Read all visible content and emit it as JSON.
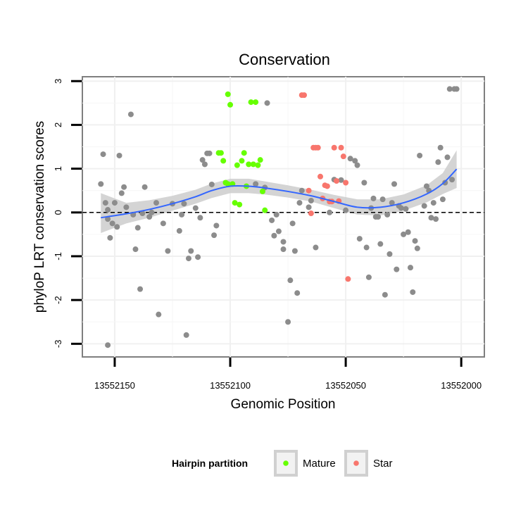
{
  "chart_data": {
    "type": "scatter",
    "title": "Conservation",
    "xlabel": "Genomic Position",
    "ylabel": "phyloP LRT conservation scores",
    "x_reversed": true,
    "xlim": [
      13552164,
      13551990
    ],
    "ylim": [
      -3.3,
      3.1
    ],
    "x_ticks": [
      13552150,
      13552100,
      13552050,
      13552000
    ],
    "x_tick_labels": [
      "13552150",
      "13552100",
      "13552050",
      "13552000"
    ],
    "y_ticks": [
      -3,
      -2,
      -1,
      0,
      1,
      2,
      3
    ],
    "y_tick_labels": [
      "-3",
      "-2",
      "-1",
      "0",
      "1",
      "2",
      "3"
    ],
    "grid": true,
    "reference_line": {
      "y": 0,
      "style": "dashed"
    },
    "legend": {
      "title": "Hairpin partition",
      "position": "bottom",
      "entries": [
        {
          "name": "Mature",
          "color": "#66ff00"
        },
        {
          "name": "Star",
          "color": "#f8766d"
        }
      ]
    },
    "colors": {
      "other": "#8c8c8c",
      "Mature": "#66ff00",
      "Star": "#f8766d",
      "smooth": "#3366ff",
      "ribbon": "#cccccc"
    },
    "series": [
      {
        "name": "",
        "group": "other",
        "points": [
          [
            13552156,
            0.65
          ],
          [
            13552155,
            1.33
          ],
          [
            13552154,
            0.22
          ],
          [
            13552153,
            0.06
          ],
          [
            13552153,
            -0.15
          ],
          [
            13552152,
            -0.58
          ],
          [
            13552151,
            -0.25
          ],
          [
            13552150,
            0.22
          ],
          [
            13552149,
            -0.33
          ],
          [
            13552148,
            1.3
          ],
          [
            13552147,
            0.44
          ],
          [
            13552146,
            0.58
          ],
          [
            13552145,
            0.12
          ],
          [
            13552143,
            2.24
          ],
          [
            13552142,
            -0.05
          ],
          [
            13552141,
            -0.84
          ],
          [
            13552140,
            -0.35
          ],
          [
            13552139,
            -1.75
          ],
          [
            13552138,
            -0.02
          ],
          [
            13552137,
            0.58
          ],
          [
            13552135,
            -0.1
          ],
          [
            13552134,
            0.0
          ],
          [
            13552132,
            0.22
          ],
          [
            13552131,
            -2.33
          ],
          [
            13552129,
            -0.25
          ],
          [
            13552127,
            -0.88
          ],
          [
            13552125,
            0.2
          ],
          [
            13552122,
            -0.42
          ],
          [
            13552121,
            -0.05
          ],
          [
            13552120,
            0.2
          ],
          [
            13552119,
            -2.8
          ],
          [
            13552118,
            -1.05
          ],
          [
            13552117,
            -0.88
          ],
          [
            13552115,
            0.1
          ],
          [
            13552114,
            -1.02
          ],
          [
            13552113,
            -0.12
          ],
          [
            13552112,
            1.2
          ],
          [
            13552111,
            1.1
          ],
          [
            13552110,
            1.35
          ],
          [
            13552109,
            1.35
          ],
          [
            13552108,
            0.64
          ],
          [
            13552107,
            -0.52
          ],
          [
            13552106,
            -0.3
          ],
          [
            13552153,
            -3.03
          ],
          [
            13552089,
            0.65
          ],
          [
            13552085,
            0.57
          ],
          [
            13552084,
            2.5
          ],
          [
            13552082,
            -0.18
          ],
          [
            13552081,
            -0.53
          ],
          [
            13552080,
            -0.05
          ],
          [
            13552079,
            -0.43
          ],
          [
            13552077,
            -0.67
          ],
          [
            13552077,
            -0.84
          ],
          [
            13552075,
            -2.5
          ],
          [
            13552074,
            -1.55
          ],
          [
            13552073,
            -0.25
          ],
          [
            13552072,
            -0.88
          ],
          [
            13552071,
            -1.84
          ],
          [
            13552070,
            0.22
          ],
          [
            13552069,
            0.5
          ],
          [
            13552066,
            0.12
          ],
          [
            13552065,
            0.27
          ],
          [
            13552063,
            -0.8
          ],
          [
            13552057,
            0.0
          ],
          [
            13552055,
            0.75
          ],
          [
            13552052,
            0.74
          ],
          [
            13552050,
            0.05
          ],
          [
            13552048,
            1.23
          ],
          [
            13552046,
            1.18
          ],
          [
            13552045,
            1.08
          ],
          [
            13552044,
            -0.6
          ],
          [
            13552042,
            0.68
          ],
          [
            13552041,
            -0.8
          ],
          [
            13552040,
            -1.48
          ],
          [
            13552039,
            0.1
          ],
          [
            13552038,
            0.32
          ],
          [
            13552037,
            -0.1
          ],
          [
            13552036,
            -0.1
          ],
          [
            13552035,
            -0.72
          ],
          [
            13552034,
            0.3
          ],
          [
            13552033,
            -1.88
          ],
          [
            13552032,
            -0.05
          ],
          [
            13552031,
            -0.95
          ],
          [
            13552030,
            0.22
          ],
          [
            13552029,
            0.65
          ],
          [
            13552028,
            -1.3
          ],
          [
            13552027,
            0.15
          ],
          [
            13552026,
            0.1
          ],
          [
            13552025,
            -0.5
          ],
          [
            13552024,
            0.08
          ],
          [
            13552023,
            -0.45
          ],
          [
            13552022,
            -1.26
          ],
          [
            13552021,
            -1.82
          ],
          [
            13552020,
            -0.65
          ],
          [
            13552019,
            -0.82
          ],
          [
            13552018,
            1.3
          ],
          [
            13552016,
            0.15
          ],
          [
            13552015,
            0.6
          ],
          [
            13552014,
            0.5
          ],
          [
            13552013,
            -0.12
          ],
          [
            13552012,
            0.22
          ],
          [
            13552011,
            -0.15
          ],
          [
            13552010,
            1.15
          ],
          [
            13552009,
            1.48
          ],
          [
            13552008,
            0.3
          ],
          [
            13552007,
            0.68
          ],
          [
            13552006,
            1.26
          ],
          [
            13552005,
            2.82
          ],
          [
            13552004,
            0.75
          ],
          [
            13552003,
            2.82
          ],
          [
            13552002,
            2.82
          ]
        ]
      },
      {
        "name": "Mature",
        "group": "Mature",
        "points": [
          [
            13552101,
            2.7
          ],
          [
            13552100,
            2.46
          ],
          [
            13552105,
            1.36
          ],
          [
            13552104,
            1.36
          ],
          [
            13552103,
            1.18
          ],
          [
            13552101,
            0.65
          ],
          [
            13552099,
            0.65
          ],
          [
            13552098,
            0.22
          ],
          [
            13552097,
            1.08
          ],
          [
            13552096,
            0.18
          ],
          [
            13552095,
            1.18
          ],
          [
            13552094,
            1.36
          ],
          [
            13552093,
            0.6
          ],
          [
            13552092,
            1.1
          ],
          [
            13552091,
            2.52
          ],
          [
            13552090,
            1.1
          ],
          [
            13552089,
            2.52
          ],
          [
            13552088,
            1.08
          ],
          [
            13552087,
            1.2
          ],
          [
            13552086,
            0.48
          ],
          [
            13552085,
            0.05
          ],
          [
            13552102,
            0.68
          ]
        ]
      },
      {
        "name": "Star",
        "group": "Star",
        "points": [
          [
            13552069,
            2.68
          ],
          [
            13552068,
            2.68
          ],
          [
            13552066,
            0.5
          ],
          [
            13552065,
            -0.02
          ],
          [
            13552064,
            1.48
          ],
          [
            13552063,
            1.48
          ],
          [
            13552062,
            1.48
          ],
          [
            13552061,
            0.82
          ],
          [
            13552060,
            0.32
          ],
          [
            13552059,
            0.62
          ],
          [
            13552058,
            0.6
          ],
          [
            13552057,
            0.25
          ],
          [
            13552056,
            0.25
          ],
          [
            13552055,
            1.48
          ],
          [
            13552054,
            0.72
          ],
          [
            13552053,
            0.26
          ],
          [
            13552052,
            1.48
          ],
          [
            13552051,
            1.28
          ],
          [
            13552050,
            0.68
          ],
          [
            13552049,
            -1.52
          ]
        ]
      }
    ],
    "smooth": {
      "x": [
        13552156,
        13552145,
        13552135,
        13552125,
        13552115,
        13552108,
        13552100,
        13552092,
        13552085,
        13552075,
        13552065,
        13552055,
        13552045,
        13552035,
        13552025,
        13552015,
        13552008,
        13552002
      ],
      "y": [
        -0.12,
        -0.03,
        0.07,
        0.2,
        0.36,
        0.5,
        0.6,
        0.6,
        0.56,
        0.48,
        0.38,
        0.25,
        0.12,
        0.12,
        0.22,
        0.42,
        0.66,
        0.99
      ],
      "ymin": [
        -0.47,
        -0.25,
        -0.12,
        0.04,
        0.2,
        0.33,
        0.44,
        0.44,
        0.41,
        0.34,
        0.25,
        0.1,
        -0.05,
        -0.07,
        0.04,
        0.23,
        0.42,
        0.56
      ],
      "ymax": [
        0.44,
        0.22,
        0.28,
        0.38,
        0.52,
        0.66,
        0.77,
        0.77,
        0.71,
        0.62,
        0.52,
        0.4,
        0.3,
        0.3,
        0.41,
        0.62,
        0.9,
        1.42
      ]
    }
  }
}
